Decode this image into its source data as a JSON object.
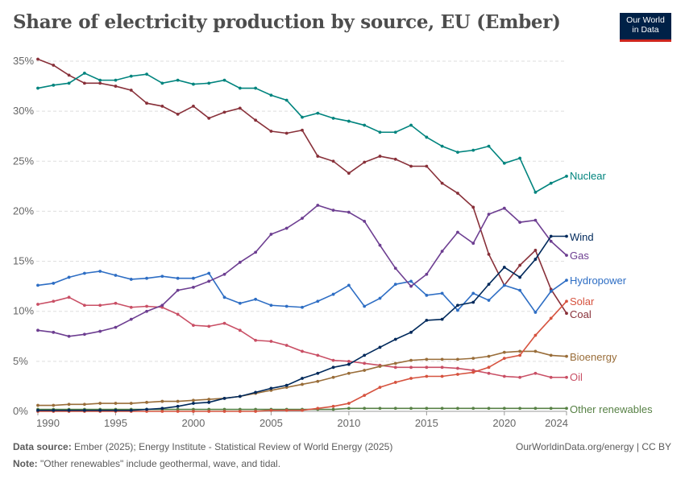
{
  "title": "Share of electricity production by source, EU (Ember)",
  "logo": {
    "line1": "Our World",
    "line2": "in Data"
  },
  "footer": {
    "source_label": "Data source:",
    "source": "Ember (2025); Energy Institute - Statistical Review of World Energy (2025)",
    "link": "OurWorldinData.org/energy | CC BY",
    "note_label": "Note:",
    "note": "\"Other renewables\" include geothermal, wave, and tidal."
  },
  "chart_data": {
    "type": "line",
    "title": "Share of electricity production by source, EU (Ember)",
    "xlabel": "",
    "ylabel": "",
    "xlim": [
      1990,
      2024
    ],
    "ylim": [
      0,
      35
    ],
    "y_ticks": [
      "0%",
      "5%",
      "10%",
      "15%",
      "20%",
      "25%",
      "30%",
      "35%"
    ],
    "x_ticks": [
      "1990",
      "1995",
      "2000",
      "2005",
      "2010",
      "2015",
      "2020",
      "2024"
    ],
    "grid": "horizontal dashed",
    "legend": "right, inline labels at line ends",
    "x": [
      1990,
      1991,
      1992,
      1993,
      1994,
      1995,
      1996,
      1997,
      1998,
      1999,
      2000,
      2001,
      2002,
      2003,
      2004,
      2005,
      2006,
      2007,
      2008,
      2009,
      2010,
      2011,
      2012,
      2013,
      2014,
      2015,
      2016,
      2017,
      2018,
      2019,
      2020,
      2021,
      2022,
      2023,
      2024
    ],
    "series": [
      {
        "name": "Nuclear",
        "color": "#00847e",
        "values": [
          32.3,
          32.6,
          32.8,
          33.8,
          33.1,
          33.1,
          33.5,
          33.7,
          32.8,
          33.1,
          32.7,
          32.8,
          33.1,
          32.3,
          32.3,
          31.6,
          31.1,
          29.4,
          29.8,
          29.3,
          29.0,
          28.6,
          27.9,
          27.9,
          28.6,
          27.4,
          26.5,
          25.9,
          26.1,
          26.5,
          24.8,
          25.3,
          21.9,
          22.8,
          23.5
        ]
      },
      {
        "name": "Wind",
        "color": "#00295b",
        "values": [
          0.1,
          0.1,
          0.1,
          0.1,
          0.1,
          0.1,
          0.1,
          0.2,
          0.3,
          0.5,
          0.8,
          0.9,
          1.3,
          1.5,
          1.9,
          2.3,
          2.6,
          3.3,
          3.8,
          4.4,
          4.7,
          5.6,
          6.4,
          7.2,
          7.9,
          9.1,
          9.2,
          10.6,
          10.9,
          12.7,
          14.4,
          13.4,
          15.2,
          17.5,
          17.5
        ]
      },
      {
        "name": "Gas",
        "color": "#6d3e91",
        "values": [
          8.1,
          7.9,
          7.5,
          7.7,
          8.0,
          8.4,
          9.2,
          10.0,
          10.6,
          12.1,
          12.4,
          13.0,
          13.7,
          14.9,
          15.9,
          17.7,
          18.3,
          19.3,
          20.6,
          20.1,
          19.9,
          19.0,
          16.6,
          14.3,
          12.5,
          13.7,
          16.0,
          17.9,
          16.8,
          19.7,
          20.3,
          18.9,
          19.1,
          17.0,
          15.6
        ]
      },
      {
        "name": "Hydropower",
        "color": "#2e6ec4",
        "values": [
          12.6,
          12.8,
          13.4,
          13.8,
          14.0,
          13.6,
          13.2,
          13.3,
          13.5,
          13.3,
          13.3,
          13.8,
          11.4,
          10.8,
          11.2,
          10.6,
          10.5,
          10.4,
          11.0,
          11.7,
          12.6,
          10.5,
          11.3,
          12.7,
          13.0,
          11.6,
          11.8,
          10.1,
          11.8,
          11.1,
          12.6,
          12.1,
          9.9,
          12.0,
          13.1
        ]
      },
      {
        "name": "Solar",
        "color": "#d6533f",
        "values": [
          0,
          0,
          0,
          0,
          0,
          0,
          0,
          0,
          0,
          0,
          0,
          0,
          0,
          0,
          0,
          0.1,
          0.1,
          0.1,
          0.3,
          0.5,
          0.8,
          1.6,
          2.4,
          2.9,
          3.3,
          3.5,
          3.5,
          3.7,
          3.9,
          4.4,
          5.3,
          5.6,
          7.6,
          9.3,
          11.0
        ]
      },
      {
        "name": "Coal",
        "color": "#883039",
        "values": [
          35.2,
          34.6,
          33.6,
          32.8,
          32.8,
          32.5,
          32.1,
          30.8,
          30.5,
          29.7,
          30.5,
          29.3,
          29.9,
          30.3,
          29.1,
          28.0,
          27.8,
          28.1,
          25.5,
          25.0,
          23.8,
          24.9,
          25.5,
          25.2,
          24.5,
          24.5,
          22.8,
          21.8,
          20.4,
          15.7,
          12.6,
          14.6,
          16.1,
          12.2,
          9.8
        ]
      },
      {
        "name": "Bioenergy",
        "color": "#996d39",
        "values": [
          0.6,
          0.6,
          0.7,
          0.7,
          0.8,
          0.8,
          0.8,
          0.9,
          1.0,
          1.0,
          1.1,
          1.2,
          1.3,
          1.5,
          1.8,
          2.1,
          2.4,
          2.7,
          3.0,
          3.4,
          3.8,
          4.1,
          4.5,
          4.8,
          5.1,
          5.2,
          5.2,
          5.2,
          5.3,
          5.5,
          5.9,
          6.0,
          6.0,
          5.6,
          5.5
        ]
      },
      {
        "name": "Oil",
        "color": "#c94f65",
        "values": [
          10.7,
          11.0,
          11.4,
          10.6,
          10.6,
          10.8,
          10.4,
          10.5,
          10.4,
          9.7,
          8.6,
          8.5,
          8.8,
          8.1,
          7.1,
          7.0,
          6.6,
          6.0,
          5.6,
          5.1,
          5.0,
          4.8,
          4.6,
          4.4,
          4.4,
          4.4,
          4.4,
          4.3,
          4.1,
          3.8,
          3.5,
          3.4,
          3.8,
          3.4,
          3.4
        ]
      },
      {
        "name": "Other renewables",
        "color": "#578145",
        "values": [
          0.2,
          0.2,
          0.2,
          0.2,
          0.2,
          0.2,
          0.2,
          0.2,
          0.2,
          0.2,
          0.2,
          0.2,
          0.2,
          0.2,
          0.2,
          0.2,
          0.2,
          0.2,
          0.2,
          0.2,
          0.3,
          0.3,
          0.3,
          0.3,
          0.3,
          0.3,
          0.3,
          0.3,
          0.3,
          0.3,
          0.3,
          0.3,
          0.3,
          0.3,
          0.3
        ]
      }
    ]
  }
}
